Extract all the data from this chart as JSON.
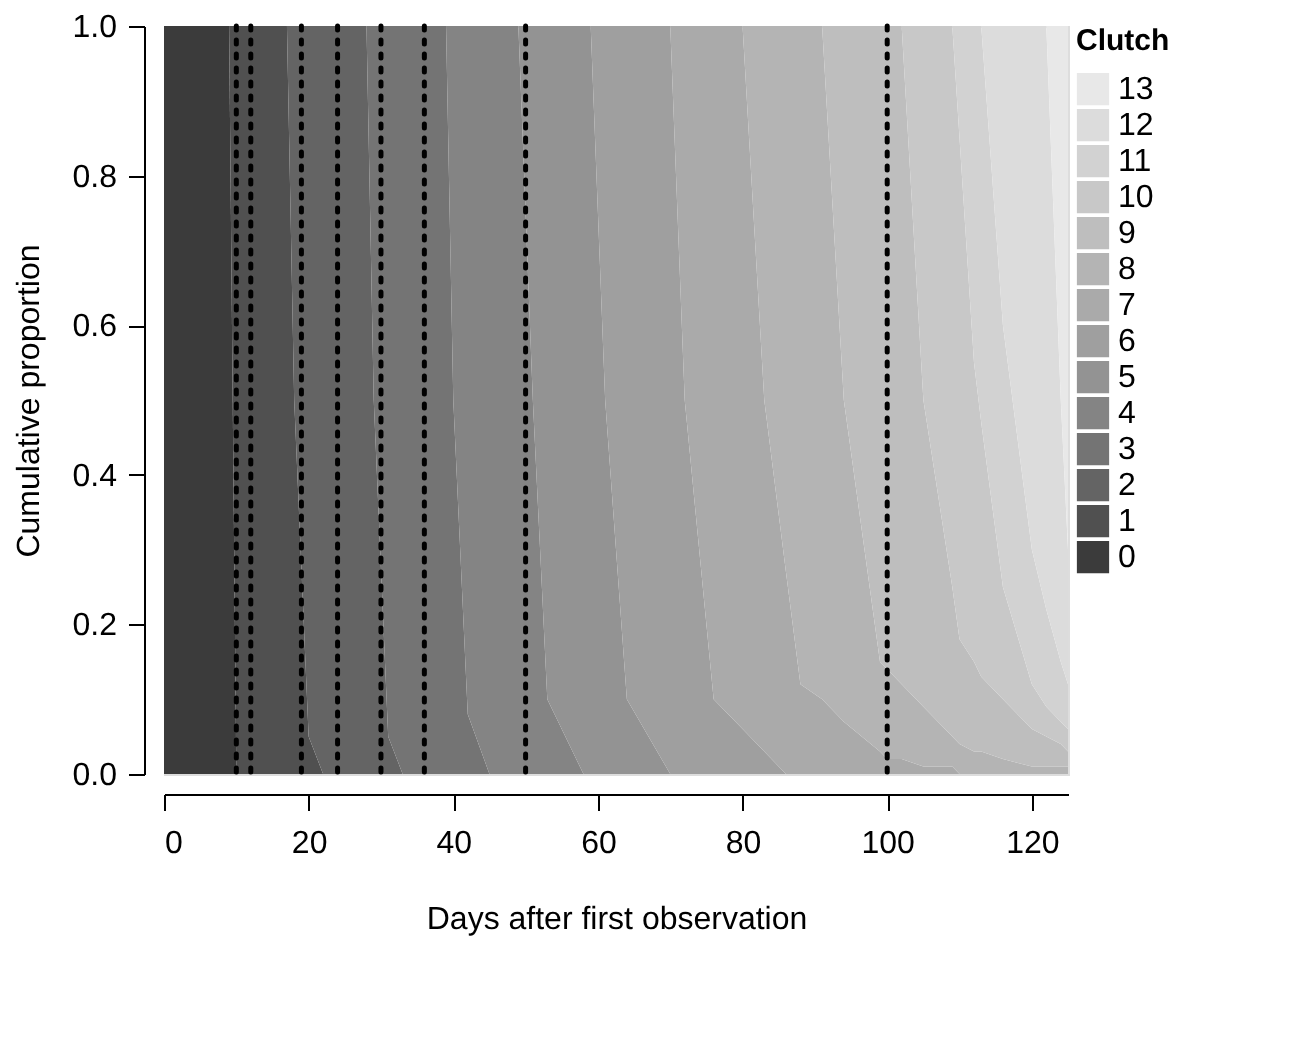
{
  "chart_data": {
    "type": "area",
    "stacked": true,
    "xlabel": "Days after first observation",
    "ylabel": "Cumulative proportion",
    "legend_title": "Clutch",
    "legend": "right",
    "xlim": [
      0,
      125
    ],
    "ylim": [
      0,
      1
    ],
    "xticks": [
      0,
      20,
      40,
      60,
      80,
      100,
      120
    ],
    "yticks": [
      {
        "value": 0,
        "label": "0.0"
      },
      0.2,
      0.4,
      0.6,
      0.8,
      {
        "value": 1,
        "label": "1.0"
      }
    ],
    "x": [
      0,
      9,
      10,
      17,
      18,
      20,
      22,
      28,
      29,
      31,
      33,
      38,
      39,
      40,
      42,
      45,
      49,
      51,
      53,
      58,
      59,
      61,
      64,
      70,
      72,
      76,
      80,
      83,
      86,
      88,
      91,
      94,
      99,
      100,
      102,
      105,
      109,
      110,
      112,
      113,
      116,
      120,
      122,
      124,
      125
    ],
    "series": [
      {
        "name": "0",
        "color": "#3b3b3b",
        "values": [
          1,
          1,
          0,
          null,
          null,
          null,
          null,
          null,
          null,
          null,
          null,
          null,
          null,
          null,
          null,
          null,
          null,
          null,
          null,
          null,
          null,
          null,
          null,
          null,
          null,
          null,
          null,
          null,
          null,
          null,
          null,
          null,
          null,
          null,
          null,
          null,
          null,
          null,
          null,
          null,
          null,
          null,
          null,
          null,
          null
        ]
      },
      {
        "name": "1",
        "color": "#505050",
        "values": [
          null,
          0,
          1,
          1,
          0.5,
          0.05,
          0,
          null,
          null,
          null,
          null,
          null,
          null,
          null,
          null,
          null,
          null,
          null,
          null,
          null,
          null,
          null,
          null,
          null,
          null,
          null,
          null,
          null,
          null,
          null,
          null,
          null,
          null,
          null,
          null,
          null,
          null,
          null,
          null,
          null,
          null,
          null,
          null,
          null,
          null
        ]
      },
      {
        "name": "2",
        "color": "#646464",
        "values": [
          null,
          null,
          null,
          0,
          0.5,
          0.95,
          1,
          1,
          0.5,
          0.05,
          0,
          null,
          null,
          null,
          null,
          null,
          null,
          null,
          null,
          null,
          null,
          null,
          null,
          null,
          null,
          null,
          null,
          null,
          null,
          null,
          null,
          null,
          null,
          null,
          null,
          null,
          null,
          null,
          null,
          null,
          null,
          null,
          null,
          null,
          null
        ]
      },
      {
        "name": "3",
        "color": "#747474",
        "values": [
          null,
          null,
          null,
          null,
          null,
          null,
          null,
          0,
          0.5,
          0.95,
          1,
          1,
          1,
          0.5,
          0.08,
          0,
          null,
          null,
          null,
          null,
          null,
          null,
          null,
          null,
          null,
          null,
          null,
          null,
          null,
          null,
          null,
          null,
          null,
          null,
          null,
          null,
          null,
          null,
          null,
          null,
          null,
          null,
          null,
          null,
          null
        ]
      },
      {
        "name": "4",
        "color": "#848484",
        "values": [
          null,
          null,
          null,
          null,
          null,
          null,
          null,
          null,
          null,
          null,
          null,
          null,
          0,
          0.5,
          0.92,
          1,
          1,
          0.5,
          0.1,
          0,
          null,
          null,
          null,
          null,
          null,
          null,
          null,
          null,
          null,
          null,
          null,
          null,
          null,
          null,
          null,
          null,
          null,
          null,
          null,
          null,
          null,
          null,
          null,
          null,
          null
        ]
      },
      {
        "name": "5",
        "color": "#939393",
        "values": [
          null,
          null,
          null,
          null,
          null,
          null,
          null,
          null,
          null,
          null,
          null,
          null,
          null,
          null,
          null,
          null,
          0,
          0.5,
          0.9,
          1,
          1,
          0.5,
          0.1,
          0,
          null,
          null,
          null,
          null,
          null,
          null,
          null,
          null,
          null,
          null,
          null,
          null,
          null,
          null,
          null,
          null,
          null,
          null,
          null,
          null,
          null
        ]
      },
      {
        "name": "6",
        "color": "#9f9f9f",
        "values": [
          null,
          null,
          null,
          null,
          null,
          null,
          null,
          null,
          null,
          null,
          null,
          null,
          null,
          null,
          null,
          null,
          null,
          null,
          null,
          null,
          0,
          0.5,
          0.9,
          1,
          0.5,
          0.1,
          0.06,
          0.03,
          0,
          null,
          null,
          null,
          null,
          null,
          null,
          null,
          null,
          null,
          null,
          null,
          null,
          null,
          null,
          null,
          null
        ]
      },
      {
        "name": "7",
        "color": "#aaaaaa",
        "values": [
          null,
          null,
          null,
          null,
          null,
          null,
          null,
          null,
          null,
          null,
          null,
          null,
          null,
          null,
          null,
          null,
          null,
          null,
          null,
          null,
          null,
          null,
          null,
          0,
          0.5,
          0.9,
          0.94,
          0.47,
          0.27,
          0.12,
          0.1,
          0.07,
          0.03,
          0.02,
          0.02,
          0.01,
          0.01,
          0,
          null,
          null,
          null,
          null,
          null,
          null,
          null
        ]
      },
      {
        "name": "8",
        "color": "#b4b4b4",
        "values": [
          null,
          null,
          null,
          null,
          null,
          null,
          null,
          null,
          null,
          null,
          null,
          null,
          null,
          null,
          null,
          null,
          null,
          null,
          null,
          null,
          null,
          null,
          null,
          null,
          null,
          null,
          0,
          0.5,
          0.73,
          0.88,
          0.9,
          0.43,
          0.12,
          0.12,
          0.1,
          0.08,
          0.04,
          0.04,
          0.03,
          0.03,
          0.02,
          0.01,
          0.01,
          0.01,
          0.01
        ]
      },
      {
        "name": "9",
        "color": "#bebebe",
        "values": [
          null,
          null,
          null,
          null,
          null,
          null,
          null,
          null,
          null,
          null,
          null,
          null,
          null,
          null,
          null,
          null,
          null,
          null,
          null,
          null,
          null,
          null,
          null,
          null,
          null,
          null,
          null,
          null,
          null,
          null,
          0,
          0.5,
          0.85,
          0.86,
          0.88,
          0.41,
          0.2,
          0.14,
          0.12,
          0.1,
          0.08,
          0.05,
          0.04,
          0.03,
          0.02
        ]
      },
      {
        "name": "10",
        "color": "#c8c8c8",
        "values": [
          null,
          null,
          null,
          null,
          null,
          null,
          null,
          null,
          null,
          null,
          null,
          null,
          null,
          null,
          null,
          null,
          null,
          null,
          null,
          null,
          null,
          null,
          null,
          null,
          null,
          null,
          null,
          null,
          null,
          null,
          null,
          null,
          null,
          null,
          0,
          0.5,
          0.75,
          0.67,
          0.4,
          0.34,
          0.15,
          0.06,
          0.04,
          0.03,
          0.03
        ]
      },
      {
        "name": "11",
        "color": "#d2d2d2",
        "values": [
          null,
          null,
          null,
          null,
          null,
          null,
          null,
          null,
          null,
          null,
          null,
          null,
          null,
          null,
          null,
          null,
          null,
          null,
          null,
          null,
          null,
          null,
          null,
          null,
          null,
          null,
          null,
          null,
          null,
          null,
          null,
          null,
          null,
          null,
          null,
          null,
          0,
          0.15,
          0.45,
          0.53,
          0.35,
          0.18,
          0.13,
          0.08,
          0.06
        ]
      },
      {
        "name": "12",
        "color": "#dcdcdc",
        "values": [
          null,
          null,
          null,
          null,
          null,
          null,
          null,
          null,
          null,
          null,
          null,
          null,
          null,
          null,
          null,
          null,
          null,
          null,
          null,
          null,
          null,
          null,
          null,
          null,
          null,
          null,
          null,
          null,
          null,
          null,
          null,
          null,
          null,
          null,
          null,
          null,
          null,
          null,
          null,
          0,
          0.4,
          0.7,
          0.78,
          0.35,
          0.18
        ]
      },
      {
        "name": "13",
        "color": "#e8e8e8",
        "values": [
          null,
          null,
          null,
          null,
          null,
          null,
          null,
          null,
          null,
          null,
          null,
          null,
          null,
          null,
          null,
          null,
          null,
          null,
          null,
          null,
          null,
          null,
          null,
          null,
          null,
          null,
          null,
          null,
          null,
          null,
          null,
          null,
          null,
          null,
          null,
          null,
          null,
          null,
          null,
          null,
          null,
          null,
          0,
          0.5,
          0.7
        ]
      }
    ],
    "ref_lines": [
      {
        "axis": "x",
        "value": 10,
        "color": "#000000",
        "line_style": "dotted"
      },
      {
        "axis": "x",
        "value": 12,
        "color": "#000000",
        "line_style": "dotted"
      },
      {
        "axis": "x",
        "value": 19,
        "color": "#000000",
        "line_style": "dotted"
      },
      {
        "axis": "x",
        "value": 24,
        "color": "#000000",
        "line_style": "dotted"
      },
      {
        "axis": "x",
        "value": 30,
        "color": "#000000",
        "line_style": "dotted"
      },
      {
        "axis": "x",
        "value": 36,
        "color": "#000000",
        "line_style": "dotted"
      },
      {
        "axis": "x",
        "value": 50,
        "color": "#000000",
        "line_style": "dotted"
      },
      {
        "axis": "x",
        "value": 100,
        "color": "#000000",
        "line_style": "dotted"
      }
    ]
  }
}
